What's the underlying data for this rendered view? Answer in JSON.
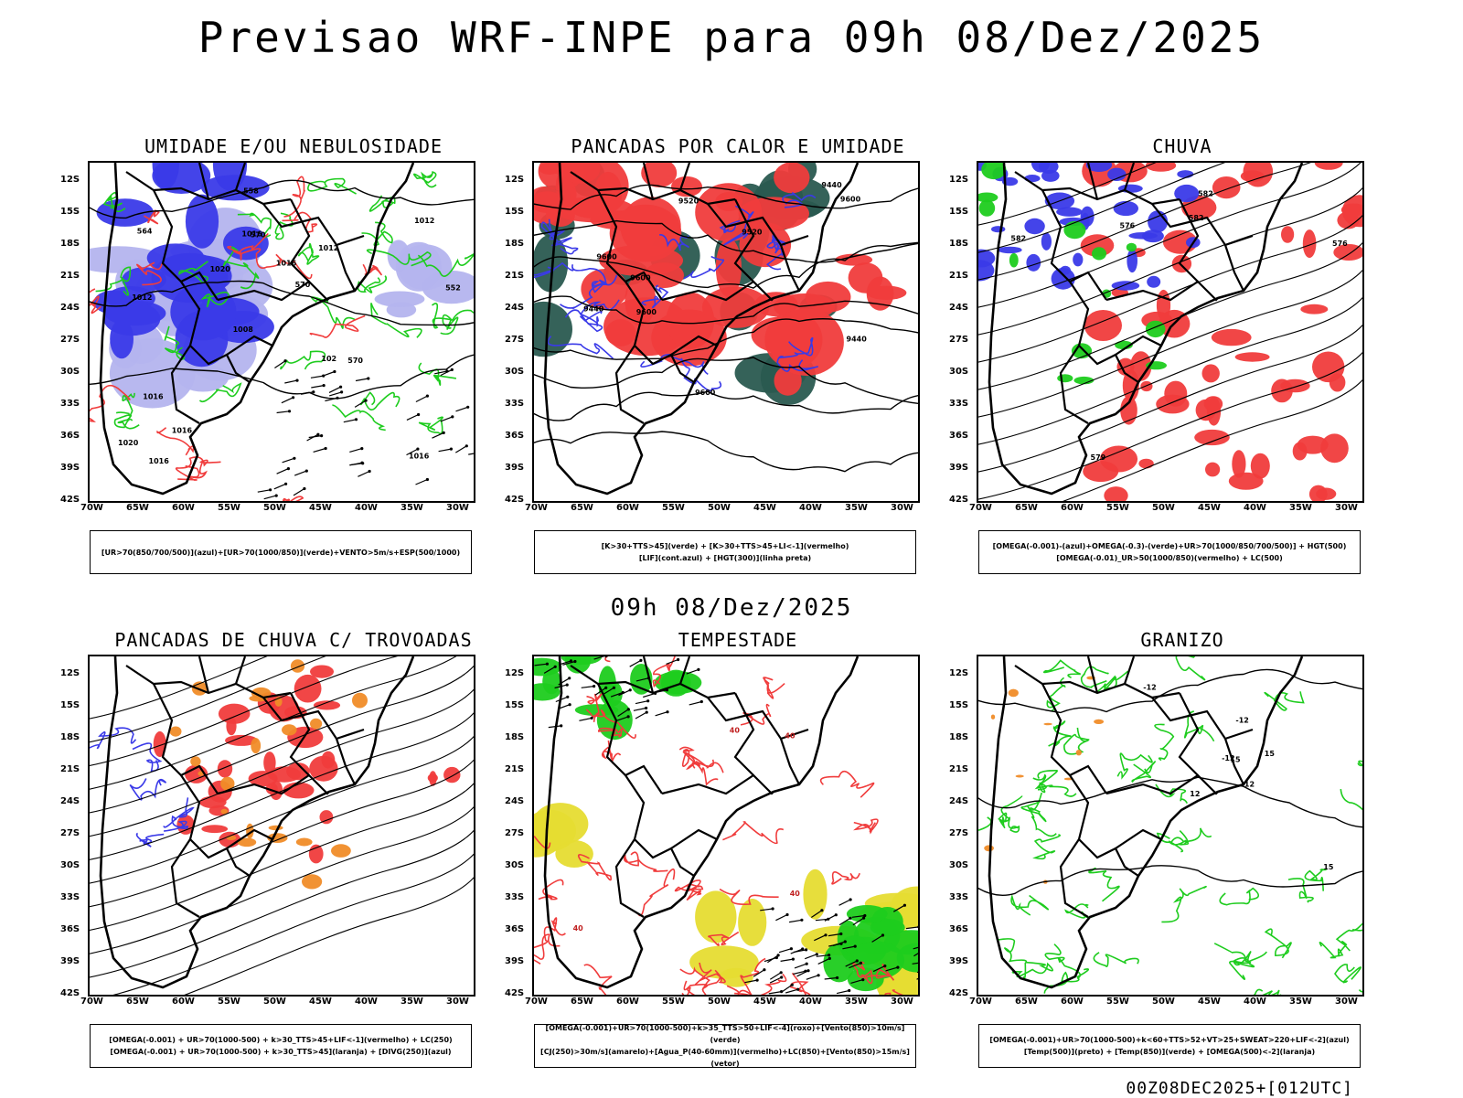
{
  "title": "Previsao WRF-INPE  para 09h 08/Dez/2025",
  "subtitle": "09h 08/Dez/2025",
  "footer": "00Z08DEC2025+[012UTC]",
  "axes": {
    "lat_labels": [
      "12S",
      "15S",
      "18S",
      "21S",
      "24S",
      "27S",
      "30S",
      "33S",
      "36S",
      "39S",
      "42S"
    ],
    "lon_labels": [
      "70W",
      "65W",
      "60W",
      "55W",
      "50W",
      "45W",
      "40W",
      "35W",
      "30W"
    ]
  },
  "colors": {
    "blue": "#3a3ae8",
    "lightblue": "#b4b4ee",
    "green": "#1ecc1e",
    "red": "#f03c3c",
    "orange": "#f08c28",
    "darkteal": "#2a5a50",
    "yellow": "#e6dc32"
  },
  "panels": [
    {
      "title": "UMIDADE E/OU NEBULOSIDADE",
      "legend": [
        "[UR>70(850/700/500)](azul)+[UR>70(1000/850)](verde)+VENTO>5m/s+ESP(500/1000)"
      ],
      "labels": [
        "1016",
        "1012",
        "1012",
        "1008",
        "1012",
        "1016",
        "1016",
        "1016",
        "1016",
        "1020",
        "1020",
        "1016",
        "570",
        "570",
        "570",
        "564",
        "558",
        "552",
        "102"
      ]
    },
    {
      "title": "PANCADAS POR CALOR E UMIDADE",
      "legend": [
        "[K>30+TTS>45](verde) + [K>30+TTS>45+LI<-1](vermelho)",
        "[LIF](cont.azul) + [HGT(300)](linha preta)"
      ],
      "labels": [
        "9600",
        "9600",
        "9600",
        "9600",
        "9600",
        "9520",
        "9520",
        "9440",
        "9440",
        "9440"
      ]
    },
    {
      "title": "CHUVA",
      "legend": [
        "[OMEGA(-0.001)-(azul)+OMEGA(-0.3)-(verde)+UR>70(1000/850/700/500)] + HGT(500)",
        "[OMEGA(-0.01)_UR>50(1000/850)(vermelho) + LC(500)"
      ],
      "labels": [
        "582",
        "582",
        "576",
        "576",
        "579",
        "582"
      ]
    },
    {
      "title": "PANCADAS DE CHUVA C/ TROVOADAS",
      "legend": [
        "[OMEGA(-0.001) + UR>70(1000-500) + k>30_TTS>45+LIF<-1](vermelho) + LC(250)",
        "[OMEGA(-0.001) + UR>70(1000-500) + k>30_TTS>45](laranja) + [DIVG(250)](azul)"
      ],
      "labels": []
    },
    {
      "title": "TEMPESTADE",
      "legend": [
        "[OMEGA(-0.001)+UR>70(1000-500)+k>35_TTS>50+LIF<-4](roxo)+[Vento(850)>10m/s](verde)",
        "[CJ(250)>30m/s](amarelo)+[Agua_P(40-60mm)](vermelho)+LC(850)+[Vento(850)>15m/s](vetor)"
      ],
      "labels": [
        "40",
        "40",
        "40",
        "40"
      ]
    },
    {
      "title": "GRANIZO",
      "legend": [
        "[OMEGA(-0.001)+UR>70(1000-500)+k<60+TTS>52+VT>25+SWEAT>220+LIF<-2](azul)",
        "[Temp(500)](preto) + [Temp(850)](verde) + [OMEGA(500)<-2](laranja)"
      ],
      "labels": [
        "-12",
        "-12",
        "-12",
        "-12",
        "12",
        "15",
        "15",
        "15"
      ]
    }
  ]
}
